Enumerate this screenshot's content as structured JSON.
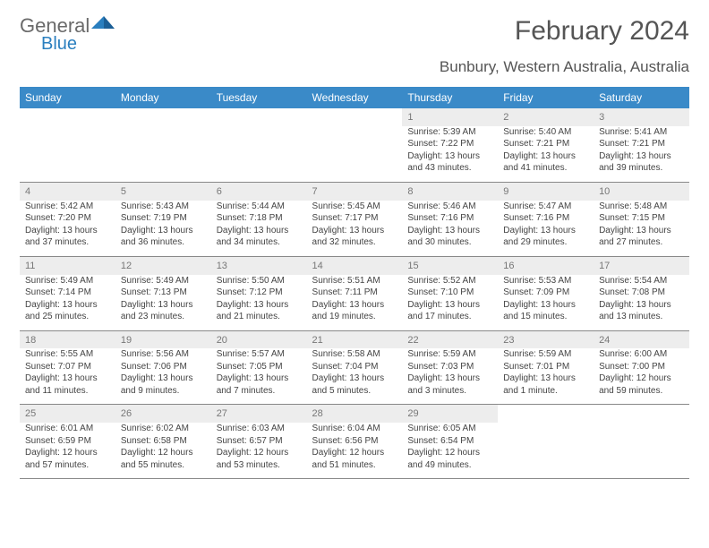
{
  "brand": {
    "name_a": "General",
    "name_b": "Blue"
  },
  "title": "February 2024",
  "subtitle": "Bunbury, Western Australia, Australia",
  "colors": {
    "header_bg": "#3a8ac8",
    "header_text": "#ffffff",
    "daynum_bg": "#ededed",
    "text": "#444444",
    "brand_gray": "#6a6a6a",
    "brand_blue": "#2a7fbf",
    "rule": "#888888",
    "background": "#ffffff"
  },
  "typography": {
    "title_fontsize": 30,
    "subtitle_fontsize": 17,
    "weekday_fontsize": 12,
    "daynum_fontsize": 11,
    "cell_fontsize": 10,
    "font_family": "Arial"
  },
  "weekdays": [
    "Sunday",
    "Monday",
    "Tuesday",
    "Wednesday",
    "Thursday",
    "Friday",
    "Saturday"
  ],
  "weeks": [
    [
      null,
      null,
      null,
      null,
      {
        "day": "1",
        "sunrise": "Sunrise: 5:39 AM",
        "sunset": "Sunset: 7:22 PM",
        "daylight": "Daylight: 13 hours and 43 minutes."
      },
      {
        "day": "2",
        "sunrise": "Sunrise: 5:40 AM",
        "sunset": "Sunset: 7:21 PM",
        "daylight": "Daylight: 13 hours and 41 minutes."
      },
      {
        "day": "3",
        "sunrise": "Sunrise: 5:41 AM",
        "sunset": "Sunset: 7:21 PM",
        "daylight": "Daylight: 13 hours and 39 minutes."
      }
    ],
    [
      {
        "day": "4",
        "sunrise": "Sunrise: 5:42 AM",
        "sunset": "Sunset: 7:20 PM",
        "daylight": "Daylight: 13 hours and 37 minutes."
      },
      {
        "day": "5",
        "sunrise": "Sunrise: 5:43 AM",
        "sunset": "Sunset: 7:19 PM",
        "daylight": "Daylight: 13 hours and 36 minutes."
      },
      {
        "day": "6",
        "sunrise": "Sunrise: 5:44 AM",
        "sunset": "Sunset: 7:18 PM",
        "daylight": "Daylight: 13 hours and 34 minutes."
      },
      {
        "day": "7",
        "sunrise": "Sunrise: 5:45 AM",
        "sunset": "Sunset: 7:17 PM",
        "daylight": "Daylight: 13 hours and 32 minutes."
      },
      {
        "day": "8",
        "sunrise": "Sunrise: 5:46 AM",
        "sunset": "Sunset: 7:16 PM",
        "daylight": "Daylight: 13 hours and 30 minutes."
      },
      {
        "day": "9",
        "sunrise": "Sunrise: 5:47 AM",
        "sunset": "Sunset: 7:16 PM",
        "daylight": "Daylight: 13 hours and 29 minutes."
      },
      {
        "day": "10",
        "sunrise": "Sunrise: 5:48 AM",
        "sunset": "Sunset: 7:15 PM",
        "daylight": "Daylight: 13 hours and 27 minutes."
      }
    ],
    [
      {
        "day": "11",
        "sunrise": "Sunrise: 5:49 AM",
        "sunset": "Sunset: 7:14 PM",
        "daylight": "Daylight: 13 hours and 25 minutes."
      },
      {
        "day": "12",
        "sunrise": "Sunrise: 5:49 AM",
        "sunset": "Sunset: 7:13 PM",
        "daylight": "Daylight: 13 hours and 23 minutes."
      },
      {
        "day": "13",
        "sunrise": "Sunrise: 5:50 AM",
        "sunset": "Sunset: 7:12 PM",
        "daylight": "Daylight: 13 hours and 21 minutes."
      },
      {
        "day": "14",
        "sunrise": "Sunrise: 5:51 AM",
        "sunset": "Sunset: 7:11 PM",
        "daylight": "Daylight: 13 hours and 19 minutes."
      },
      {
        "day": "15",
        "sunrise": "Sunrise: 5:52 AM",
        "sunset": "Sunset: 7:10 PM",
        "daylight": "Daylight: 13 hours and 17 minutes."
      },
      {
        "day": "16",
        "sunrise": "Sunrise: 5:53 AM",
        "sunset": "Sunset: 7:09 PM",
        "daylight": "Daylight: 13 hours and 15 minutes."
      },
      {
        "day": "17",
        "sunrise": "Sunrise: 5:54 AM",
        "sunset": "Sunset: 7:08 PM",
        "daylight": "Daylight: 13 hours and 13 minutes."
      }
    ],
    [
      {
        "day": "18",
        "sunrise": "Sunrise: 5:55 AM",
        "sunset": "Sunset: 7:07 PM",
        "daylight": "Daylight: 13 hours and 11 minutes."
      },
      {
        "day": "19",
        "sunrise": "Sunrise: 5:56 AM",
        "sunset": "Sunset: 7:06 PM",
        "daylight": "Daylight: 13 hours and 9 minutes."
      },
      {
        "day": "20",
        "sunrise": "Sunrise: 5:57 AM",
        "sunset": "Sunset: 7:05 PM",
        "daylight": "Daylight: 13 hours and 7 minutes."
      },
      {
        "day": "21",
        "sunrise": "Sunrise: 5:58 AM",
        "sunset": "Sunset: 7:04 PM",
        "daylight": "Daylight: 13 hours and 5 minutes."
      },
      {
        "day": "22",
        "sunrise": "Sunrise: 5:59 AM",
        "sunset": "Sunset: 7:03 PM",
        "daylight": "Daylight: 13 hours and 3 minutes."
      },
      {
        "day": "23",
        "sunrise": "Sunrise: 5:59 AM",
        "sunset": "Sunset: 7:01 PM",
        "daylight": "Daylight: 13 hours and 1 minute."
      },
      {
        "day": "24",
        "sunrise": "Sunrise: 6:00 AM",
        "sunset": "Sunset: 7:00 PM",
        "daylight": "Daylight: 12 hours and 59 minutes."
      }
    ],
    [
      {
        "day": "25",
        "sunrise": "Sunrise: 6:01 AM",
        "sunset": "Sunset: 6:59 PM",
        "daylight": "Daylight: 12 hours and 57 minutes."
      },
      {
        "day": "26",
        "sunrise": "Sunrise: 6:02 AM",
        "sunset": "Sunset: 6:58 PM",
        "daylight": "Daylight: 12 hours and 55 minutes."
      },
      {
        "day": "27",
        "sunrise": "Sunrise: 6:03 AM",
        "sunset": "Sunset: 6:57 PM",
        "daylight": "Daylight: 12 hours and 53 minutes."
      },
      {
        "day": "28",
        "sunrise": "Sunrise: 6:04 AM",
        "sunset": "Sunset: 6:56 PM",
        "daylight": "Daylight: 12 hours and 51 minutes."
      },
      {
        "day": "29",
        "sunrise": "Sunrise: 6:05 AM",
        "sunset": "Sunset: 6:54 PM",
        "daylight": "Daylight: 12 hours and 49 minutes."
      },
      null,
      null
    ]
  ]
}
